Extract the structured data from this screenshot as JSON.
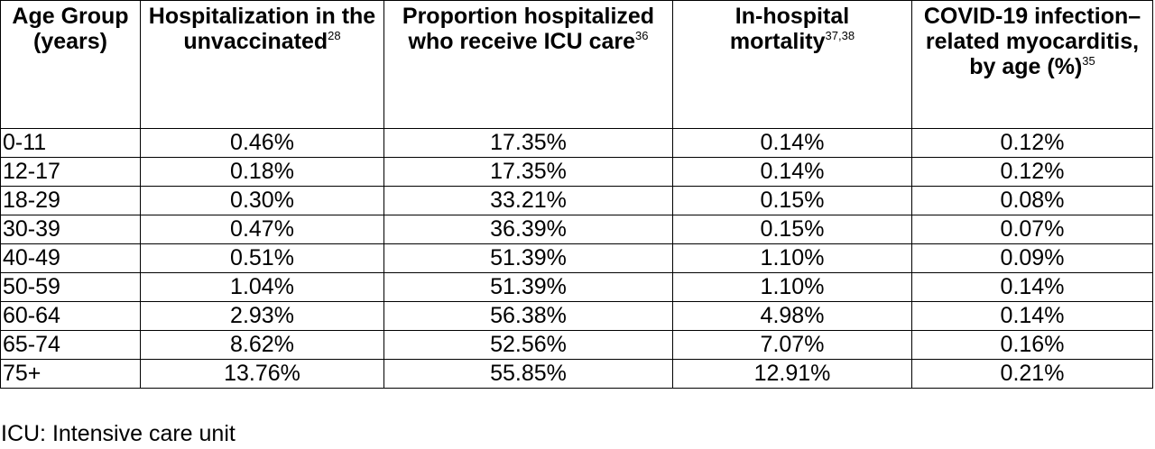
{
  "headers": [
    {
      "label": "Age Group (years)",
      "sup": ""
    },
    {
      "label": "Hospitalization in the unvaccinated",
      "sup": "28"
    },
    {
      "label": "Proportion hospitalized who receive ICU care",
      "sup": "36"
    },
    {
      "label": "In-hospital mortality",
      "sup": "37,38"
    },
    {
      "label": "COVID-19 infection–related myocarditis, by age (%)",
      "sup": "35"
    }
  ],
  "rows": [
    [
      "0-11",
      "0.46%",
      "17.35%",
      "0.14%",
      "0.12%"
    ],
    [
      "12-17",
      "0.18%",
      "17.35%",
      "0.14%",
      "0.12%"
    ],
    [
      "18-29",
      "0.30%",
      "33.21%",
      "0.15%",
      "0.08%"
    ],
    [
      "30-39",
      "0.47%",
      "36.39%",
      "0.15%",
      "0.07%"
    ],
    [
      "40-49",
      "0.51%",
      "51.39%",
      "1.10%",
      "0.09%"
    ],
    [
      "50-59",
      "1.04%",
      "51.39%",
      "1.10%",
      "0.14%"
    ],
    [
      "60-64",
      "2.93%",
      "56.38%",
      "4.98%",
      "0.14%"
    ],
    [
      "65-74",
      "8.62%",
      "52.56%",
      "7.07%",
      "0.16%"
    ],
    [
      "75+",
      "13.76%",
      "55.85%",
      "12.91%",
      "0.21%"
    ]
  ],
  "footnote": "ICU: Intensive care unit"
}
